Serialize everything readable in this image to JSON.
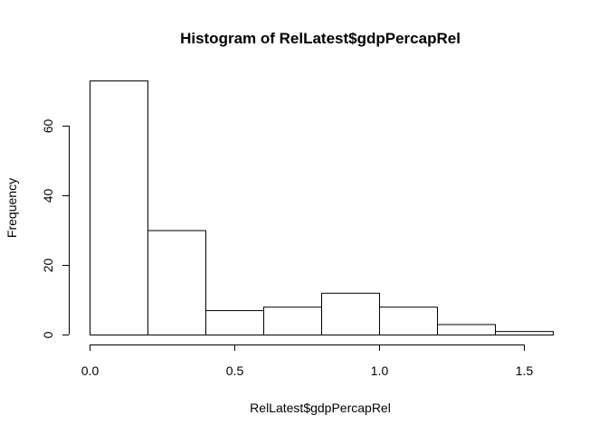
{
  "chart_data": {
    "type": "bar",
    "title": "Histogram of RelLatest$gdpPercapRel",
    "xlabel": "RelLatest$gdpPercapRel",
    "ylabel": "Frequency",
    "bins": [
      {
        "x0": 0.0,
        "x1": 0.2,
        "count": 73
      },
      {
        "x0": 0.2,
        "x1": 0.4,
        "count": 30
      },
      {
        "x0": 0.4,
        "x1": 0.6,
        "count": 7
      },
      {
        "x0": 0.6,
        "x1": 0.8,
        "count": 8
      },
      {
        "x0": 0.8,
        "x1": 1.0,
        "count": 12
      },
      {
        "x0": 1.0,
        "x1": 1.2,
        "count": 8
      },
      {
        "x0": 1.2,
        "x1": 1.4,
        "count": 3
      },
      {
        "x0": 1.4,
        "x1": 1.6,
        "count": 1
      }
    ],
    "xlim": [
      0.0,
      1.6
    ],
    "ylim": [
      0,
      73
    ],
    "x_ticks": [
      0.0,
      0.5,
      1.0,
      1.5
    ],
    "x_tick_labels": [
      "0.0",
      "0.5",
      "1.0",
      "1.5"
    ],
    "y_ticks": [
      0,
      20,
      40,
      60
    ],
    "y_tick_labels": [
      "0",
      "20",
      "40",
      "60"
    ],
    "grid": false,
    "colors": {
      "bar_fill": "#ffffff",
      "bar_stroke": "#000000"
    }
  }
}
